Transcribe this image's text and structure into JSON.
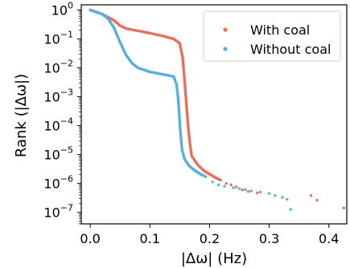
{
  "chart_data": {
    "type": "scatter",
    "xlabel": "|Δω| (Hz)",
    "ylabel": "Rank (|Δω|)",
    "xlim": [
      -0.015,
      0.43
    ],
    "ylim_log10": [
      -7.4,
      0.18
    ],
    "yscale": "log",
    "x_ticks": [
      "0.0",
      "0.1",
      "0.2",
      "0.3",
      "0.4"
    ],
    "x_tick_values": [
      0.0,
      0.1,
      0.2,
      0.3,
      0.4
    ],
    "y_tick_exponents": [
      "0",
      "-1",
      "-2",
      "-3",
      "-4",
      "-5",
      "-6",
      "-7"
    ],
    "y_tick_base": "10",
    "grid": false,
    "legend_position": "top-right",
    "series": [
      {
        "name": "With coal",
        "color": "#e8705f",
        "curve_log10": [
          [
            0.0,
            0.0
          ],
          [
            0.02,
            -0.14
          ],
          [
            0.04,
            -0.36
          ],
          [
            0.05,
            -0.54
          ],
          [
            0.06,
            -0.64
          ],
          [
            0.08,
            -0.72
          ],
          [
            0.1,
            -0.8
          ],
          [
            0.12,
            -0.89
          ],
          [
            0.14,
            -1.0
          ],
          [
            0.15,
            -1.15
          ],
          [
            0.155,
            -1.65
          ],
          [
            0.158,
            -2.4
          ],
          [
            0.161,
            -3.2
          ],
          [
            0.164,
            -4.0
          ],
          [
            0.167,
            -4.6
          ],
          [
            0.17,
            -5.05
          ],
          [
            0.18,
            -5.35
          ],
          [
            0.19,
            -5.55
          ],
          [
            0.2,
            -5.68
          ],
          [
            0.21,
            -5.8
          ],
          [
            0.22,
            -5.9
          ]
        ],
        "tail_points": [
          {
            "x": 0.228,
            "y_log10": -6.0
          },
          {
            "x": 0.236,
            "y_log10": -6.05
          },
          {
            "x": 0.245,
            "y_log10": -6.12
          },
          {
            "x": 0.255,
            "y_log10": -6.22
          },
          {
            "x": 0.265,
            "y_log10": -6.28
          },
          {
            "x": 0.28,
            "y_log10": -6.33
          },
          {
            "x": 0.37,
            "y_log10": -6.42
          },
          {
            "x": 0.38,
            "y_log10": -6.58
          },
          {
            "x": 0.425,
            "y_log10": -6.85
          }
        ]
      },
      {
        "name": "Without coal",
        "color": "#5aaee0",
        "curve_log10": [
          [
            0.0,
            0.0
          ],
          [
            0.02,
            -0.14
          ],
          [
            0.03,
            -0.3
          ],
          [
            0.04,
            -0.62
          ],
          [
            0.05,
            -1.12
          ],
          [
            0.06,
            -1.55
          ],
          [
            0.07,
            -1.84
          ],
          [
            0.08,
            -2.0
          ],
          [
            0.1,
            -2.14
          ],
          [
            0.12,
            -2.22
          ],
          [
            0.14,
            -2.3
          ],
          [
            0.145,
            -2.6
          ],
          [
            0.148,
            -3.2
          ],
          [
            0.15,
            -3.9
          ],
          [
            0.152,
            -4.4
          ],
          [
            0.154,
            -4.85
          ],
          [
            0.158,
            -5.15
          ],
          [
            0.165,
            -5.38
          ],
          [
            0.175,
            -5.55
          ],
          [
            0.185,
            -5.68
          ],
          [
            0.195,
            -5.78
          ]
        ],
        "tail_points": [
          {
            "x": 0.205,
            "y_log10": -5.95
          },
          {
            "x": 0.215,
            "y_log10": -6.05
          },
          {
            "x": 0.225,
            "y_log10": -6.1
          },
          {
            "x": 0.24,
            "y_log10": -6.15
          },
          {
            "x": 0.25,
            "y_log10": -6.18
          },
          {
            "x": 0.26,
            "y_log10": -6.22
          },
          {
            "x": 0.27,
            "y_log10": -6.26
          },
          {
            "x": 0.285,
            "y_log10": -6.3
          },
          {
            "x": 0.3,
            "y_log10": -6.35
          },
          {
            "x": 0.31,
            "y_log10": -6.42
          },
          {
            "x": 0.322,
            "y_log10": -6.48
          },
          {
            "x": 0.33,
            "y_log10": -6.55
          },
          {
            "x": 0.336,
            "y_log10": -6.9
          }
        ]
      }
    ]
  }
}
